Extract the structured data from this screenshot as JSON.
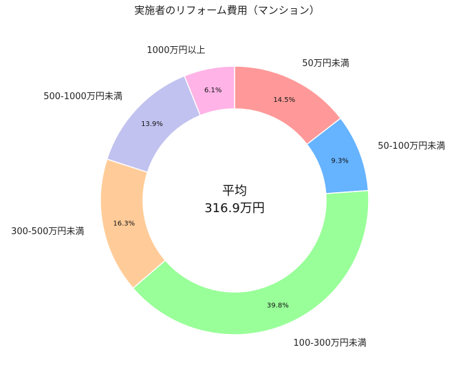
{
  "chart_data": {
    "type": "pie",
    "style": "donut",
    "title": "実施者のリフォーム費用（マンション）",
    "center_text": [
      "平均",
      "316.9万円"
    ],
    "categories": [
      "50万円未満",
      "50-100万円未満",
      "100-300万円未満",
      "300-500万円未満",
      "500-1000万円未満",
      "1000万円以上"
    ],
    "values": [
      14.5,
      9.3,
      39.8,
      16.3,
      13.9,
      6.1
    ],
    "value_labels": [
      "14.5%",
      "9.3%",
      "39.8%",
      "16.3%",
      "13.9%",
      "6.1%"
    ],
    "colors": [
      "#ff9999",
      "#66b3ff",
      "#99ff99",
      "#ffcc99",
      "#c2c2f0",
      "#ffb3e6"
    ],
    "direction": "clockwise",
    "start": "top"
  }
}
